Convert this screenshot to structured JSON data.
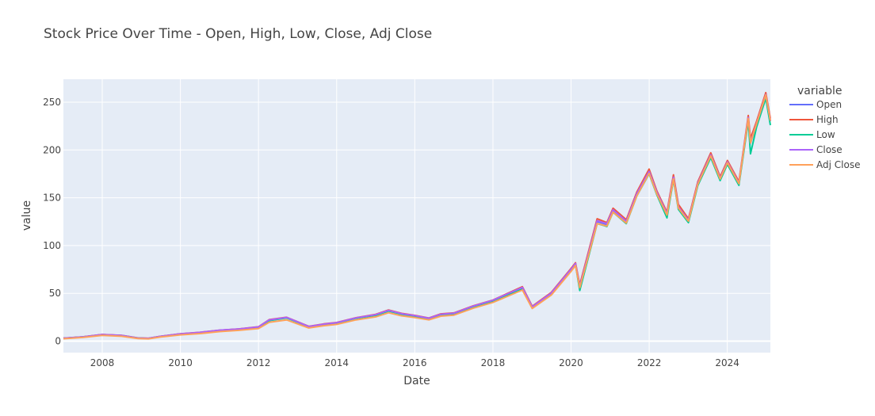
{
  "chart_data": {
    "type": "line",
    "title": "Stock Price Over Time - Open, High, Low, Close, Adj Close",
    "xlabel": "Date",
    "ylabel": "value",
    "legend_title": "variable",
    "legend_position": "right",
    "grid": true,
    "xlim": [
      "2007-01-03",
      "2025-02-07"
    ],
    "ylim": [
      -12,
      274
    ],
    "x_ticks": [
      "2008",
      "2010",
      "2012",
      "2014",
      "2016",
      "2018",
      "2020",
      "2022",
      "2024"
    ],
    "y_ticks": [
      0,
      50,
      100,
      150,
      200,
      250
    ],
    "x": [
      "2007-01-03",
      "2007-07-01",
      "2008-01-01",
      "2008-07-01",
      "2008-12-01",
      "2009-03-09",
      "2009-07-01",
      "2010-01-01",
      "2010-07-01",
      "2011-01-01",
      "2011-07-01",
      "2012-01-01",
      "2012-04-10",
      "2012-09-20",
      "2013-04-15",
      "2013-09-01",
      "2014-01-01",
      "2014-07-01",
      "2015-01-01",
      "2015-05-01",
      "2015-09-01",
      "2016-01-01",
      "2016-05-12",
      "2016-09-01",
      "2017-01-01",
      "2017-07-01",
      "2018-01-01",
      "2018-10-03",
      "2019-01-03",
      "2019-07-01",
      "2020-01-01",
      "2020-02-12",
      "2020-03-23",
      "2020-09-01",
      "2020-12-01",
      "2021-01-28",
      "2021-06-01",
      "2021-09-07",
      "2021-12-31",
      "2022-03-14",
      "2022-06-16",
      "2022-08-16",
      "2022-10-01",
      "2023-01-03",
      "2023-04-01",
      "2023-07-31",
      "2023-10-26",
      "2024-01-02",
      "2024-04-19",
      "2024-07-15",
      "2024-08-05",
      "2024-10-01",
      "2024-12-26",
      "2025-02-07"
    ],
    "series": [
      {
        "name": "Open",
        "color": "#636efa",
        "values": [
          3.0,
          4.4,
          6.8,
          5.9,
          3.2,
          2.9,
          5.0,
          7.6,
          9.0,
          11.3,
          12.6,
          14.8,
          22.0,
          24.7,
          15.2,
          17.7,
          19.2,
          24.2,
          27.5,
          32.0,
          28.5,
          26.5,
          23.8,
          28.0,
          29.0,
          36.5,
          42.5,
          55.8,
          35.7,
          50.0,
          75.0,
          81.0,
          57.0,
          125.0,
          122.0,
          137.0,
          125.0,
          154.0,
          177.0,
          155.0,
          133.0,
          171.0,
          140.0,
          126.0,
          165.0,
          194.0,
          170.0,
          187.0,
          165.0,
          233.0,
          207.0,
          227.0,
          257.0,
          230.0
        ]
      },
      {
        "name": "High",
        "color": "#ef553b",
        "values": [
          3.1,
          4.5,
          7.0,
          6.0,
          3.3,
          3.0,
          5.1,
          7.7,
          9.2,
          11.5,
          12.8,
          15.0,
          22.5,
          25.0,
          15.5,
          18.0,
          19.5,
          24.5,
          28.0,
          32.6,
          29.0,
          27.0,
          24.2,
          28.5,
          29.5,
          37.0,
          43.0,
          57.0,
          36.5,
          51.0,
          76.0,
          82.0,
          59.0,
          128.0,
          124.0,
          139.0,
          127.0,
          156.0,
          180.0,
          157.0,
          135.0,
          174.0,
          143.0,
          128.0,
          167.0,
          197.0,
          172.0,
          189.0,
          167.0,
          236.0,
          212.0,
          230.0,
          260.0,
          233.0
        ]
      },
      {
        "name": "Low",
        "color": "#00cc96",
        "values": [
          2.9,
          4.3,
          6.6,
          5.8,
          3.1,
          2.8,
          4.9,
          7.4,
          8.8,
          11.1,
          12.4,
          14.6,
          21.5,
          24.3,
          15.0,
          17.4,
          18.9,
          23.9,
          27.0,
          31.5,
          28.0,
          26.0,
          23.4,
          27.6,
          28.6,
          36.0,
          42.0,
          55.0,
          35.0,
          49.4,
          74.0,
          80.0,
          53.0,
          123.0,
          120.0,
          135.0,
          123.0,
          152.0,
          175.0,
          153.0,
          129.0,
          169.0,
          138.0,
          124.0,
          163.0,
          192.0,
          168.0,
          185.0,
          163.0,
          230.0,
          196.0,
          224.0,
          254.0,
          226.0
        ]
      },
      {
        "name": "Close",
        "color": "#ab63fa",
        "values": [
          3.0,
          4.4,
          6.9,
          5.9,
          3.2,
          2.9,
          5.0,
          7.6,
          9.1,
          11.4,
          12.7,
          14.9,
          22.2,
          24.8,
          15.3,
          17.8,
          19.3,
          24.3,
          27.7,
          32.2,
          28.7,
          26.7,
          24.0,
          28.1,
          29.2,
          36.7,
          42.8,
          56.2,
          35.9,
          50.3,
          75.2,
          81.3,
          57.3,
          126.0,
          123.0,
          137.5,
          125.5,
          154.5,
          177.5,
          155.5,
          133.5,
          171.5,
          140.5,
          126.5,
          165.5,
          195.0,
          170.5,
          187.5,
          165.5,
          234.0,
          208.0,
          228.0,
          258.0,
          231.0
        ]
      },
      {
        "name": "Adj Close",
        "color": "#ffa15a",
        "values": [
          2.5,
          3.8,
          6.0,
          5.1,
          2.7,
          2.4,
          4.3,
          6.6,
          7.9,
          10.0,
          11.3,
          13.2,
          19.7,
          22.2,
          13.8,
          16.1,
          17.5,
          22.2,
          25.4,
          29.7,
          26.5,
          24.6,
          22.2,
          26.1,
          27.2,
          34.5,
          40.5,
          53.5,
          34.2,
          48.3,
          73.0,
          79.2,
          55.9,
          123.0,
          120.5,
          135.0,
          123.5,
          152.0,
          175.5,
          153.8,
          132.0,
          169.8,
          139.3,
          125.5,
          164.3,
          193.8,
          169.6,
          186.6,
          164.7,
          233.0,
          207.3,
          227.4,
          257.5,
          230.5
        ]
      }
    ]
  }
}
